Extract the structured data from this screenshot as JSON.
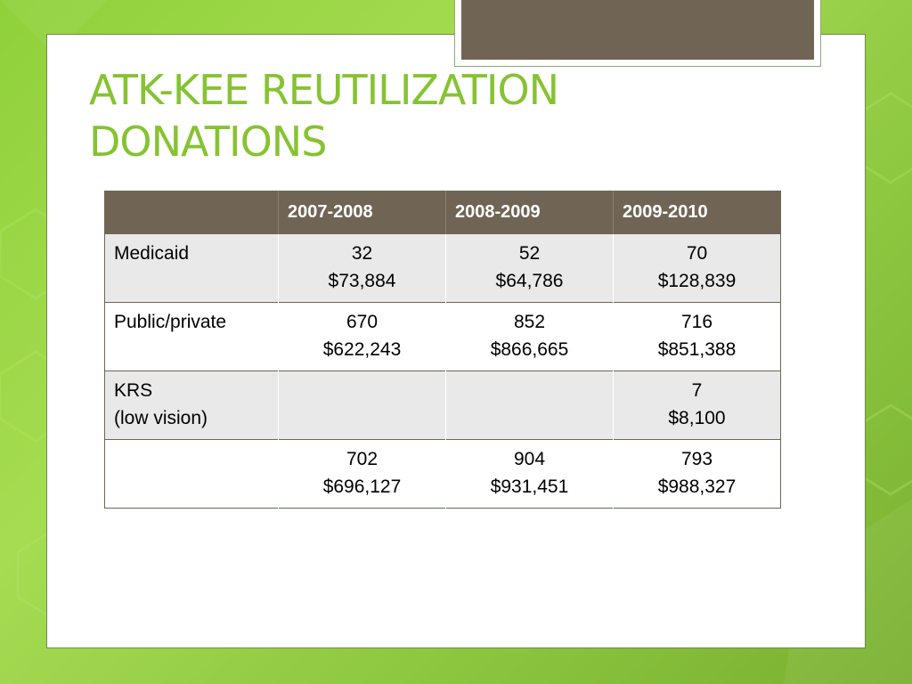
{
  "slide": {
    "title_line1": "ATK-KEE REUTILIZATION",
    "title_line2": "DONATIONS"
  },
  "table": {
    "headers": [
      "",
      "2007-2008",
      "2008-2009",
      "2009-2010"
    ],
    "rows": [
      {
        "label_line1": "Medicaid",
        "label_line2": "",
        "cells": [
          {
            "count": "32",
            "amount": "$73,884"
          },
          {
            "count": "52",
            "amount": "$64,786"
          },
          {
            "count": "70",
            "amount": "$128,839"
          }
        ]
      },
      {
        "label_line1": "Public/private",
        "label_line2": "",
        "cells": [
          {
            "count": "670",
            "amount": "$622,243"
          },
          {
            "count": "852",
            "amount": "$866,665"
          },
          {
            "count": "716",
            "amount": "$851,388"
          }
        ]
      },
      {
        "label_line1": "KRS",
        "label_line2": "(low vision)",
        "cells": [
          {
            "count": "",
            "amount": ""
          },
          {
            "count": "",
            "amount": ""
          },
          {
            "count": "7",
            "amount": "$8,100"
          }
        ]
      },
      {
        "label_line1": "",
        "label_line2": "",
        "cells": [
          {
            "count": "702",
            "amount": "$696,127"
          },
          {
            "count": "904",
            "amount": "$931,451"
          },
          {
            "count": "793",
            "amount": "$988,327"
          }
        ]
      }
    ]
  },
  "colors": {
    "title_green": "#86c332",
    "header_brown": "#706555",
    "row_shade": "#e9e9e9",
    "background_green": "#8fd13a"
  }
}
